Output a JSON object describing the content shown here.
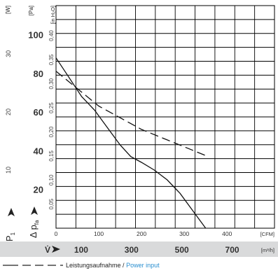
{
  "chart_data": {
    "type": "line",
    "axes": {
      "pressure_pa": {
        "label": "[Pa]",
        "ticks": [
          20,
          40,
          60,
          80,
          100
        ],
        "range": [
          0,
          115
        ]
      },
      "pressure_inh2o": {
        "label": "[in H₂O]",
        "ticks": [
          "0,05",
          "0,10",
          "0,15",
          "0,20",
          "0,25",
          "0,30",
          "0,35",
          "0,40"
        ],
        "range": [
          0,
          0.4624
        ]
      },
      "power_w": {
        "label": "[W]",
        "ticks": [
          10,
          20,
          30
        ],
        "range": [
          0,
          38.3
        ]
      },
      "cfm": {
        "label": "[CFM]",
        "ticks": [
          0,
          100,
          200,
          300,
          400
        ],
        "range": [
          0,
          511
        ]
      },
      "m3h": {
        "label": "[m³/h]",
        "ticks": [
          100,
          300,
          500,
          700
        ]
      }
    },
    "symbols": {
      "power": "P",
      "power_sub": "1",
      "pressure": "Δ p",
      "pressure_sub": "fa",
      "flow": "V̇"
    },
    "series": [
      {
        "style": "solid",
        "axis": "pressure_pa",
        "x": [
          0,
          30,
          60,
          90,
          120,
          150,
          175,
          200,
          230,
          260,
          290,
          320,
          350
        ],
        "y": [
          88,
          78,
          68,
          61,
          52,
          43,
          37,
          34,
          30,
          25,
          18,
          9,
          0
        ]
      },
      {
        "style": "dashed",
        "name": "Leistungsaufnahme / Power input",
        "axis": "power_w",
        "x": [
          0,
          100,
          200,
          300,
          350
        ],
        "y": [
          27,
          21,
          17,
          14,
          12.5
        ]
      }
    ],
    "legend": {
      "label_de": "Leistungsaufnahme /",
      "label_en": "Power input"
    }
  }
}
